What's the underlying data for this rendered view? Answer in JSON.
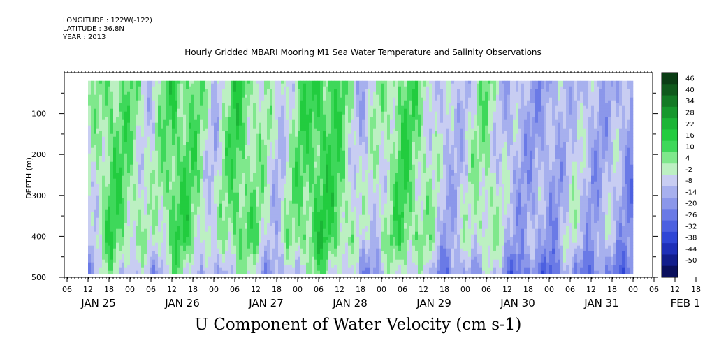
{
  "header": {
    "longitude": "LONGITUDE : 122W(-122)",
    "latitude": "LATITUDE : 36.8N",
    "year": "YEAR : 2013",
    "title": "Hourly Gridded MBARI Mooring M1 Sea Water Temperature and Salinity Observations"
  },
  "chart_data": {
    "type": "heatmap",
    "title": "Hourly Gridded MBARI Mooring M1 Sea Water Temperature and Salinity Observations",
    "variable_label": "U Component of Water Velocity (cm s-1)",
    "ylabel": "DEPTH (m)",
    "ylim": [
      500,
      0
    ],
    "y_ticks": [
      100,
      200,
      300,
      400,
      500
    ],
    "x_hour_ticks": [
      "06",
      "12",
      "18",
      "00",
      "06",
      "12",
      "18",
      "00",
      "06",
      "12",
      "18",
      "00",
      "06",
      "12",
      "18",
      "00",
      "06",
      "12",
      "18",
      "00",
      "06",
      "12",
      "18",
      "00",
      "06",
      "12",
      "18",
      "00",
      "06",
      "12",
      "18",
      "00"
    ],
    "x_date_labels": [
      "JAN 25",
      "JAN 26",
      "JAN 27",
      "JAN 28",
      "JAN 29",
      "JAN 30",
      "JAN 31",
      "FEB  1"
    ],
    "colorbar": {
      "levels": [
        46,
        40,
        34,
        28,
        22,
        16,
        10,
        4,
        -2,
        -8,
        -14,
        -20,
        -26,
        -32,
        -38,
        -44,
        -50
      ],
      "colors": [
        "#0a3d14",
        "#0f5a1c",
        "#137a25",
        "#16982d",
        "#1bb536",
        "#22cc3f",
        "#3ed85a",
        "#7fe88c",
        "#bcf0c2",
        "#c8cdf2",
        "#a7b0ee",
        "#8b97ea",
        "#6a7ae6",
        "#4c60e0",
        "#2f46d6",
        "#1e2fb8",
        "#121d8c",
        "#0a0f5c"
      ]
    },
    "data_extent": {
      "depth_top": 20,
      "depth_bottom": 490
    },
    "summary_columns": [
      {
        "time": "JAN 25 12",
        "u": -4
      },
      {
        "time": "JAN 25 18",
        "u": 12
      },
      {
        "time": "JAN 26 00",
        "u": 6
      },
      {
        "time": "JAN 26 06",
        "u": -4
      },
      {
        "time": "JAN 26 12",
        "u": 14
      },
      {
        "time": "JAN 26 18",
        "u": 8
      },
      {
        "time": "JAN 27 00",
        "u": -6
      },
      {
        "time": "JAN 27 06",
        "u": 14
      },
      {
        "time": "JAN 27 12",
        "u": 4
      },
      {
        "time": "JAN 27 18",
        "u": -6
      },
      {
        "time": "JAN 28 00",
        "u": 8
      },
      {
        "time": "JAN 28 06",
        "u": 16
      },
      {
        "time": "JAN 28 12",
        "u": 10
      },
      {
        "time": "JAN 28 18",
        "u": -8
      },
      {
        "time": "JAN 29 00",
        "u": 2
      },
      {
        "time": "JAN 29 06",
        "u": 12
      },
      {
        "time": "JAN 29 12",
        "u": 4
      },
      {
        "time": "JAN 29 18",
        "u": -10
      },
      {
        "time": "JAN 30 00",
        "u": -4
      },
      {
        "time": "JAN 30 06",
        "u": 6
      },
      {
        "time": "JAN 30 12",
        "u": -10
      },
      {
        "time": "JAN 30 18",
        "u": -12
      },
      {
        "time": "JAN 31 00",
        "u": -14
      },
      {
        "time": "JAN 31 06",
        "u": -4
      },
      {
        "time": "JAN 31 12",
        "u": -12
      },
      {
        "time": "JAN 31 18",
        "u": -8
      },
      {
        "time": "FEB 1 00",
        "u": -18
      }
    ]
  }
}
